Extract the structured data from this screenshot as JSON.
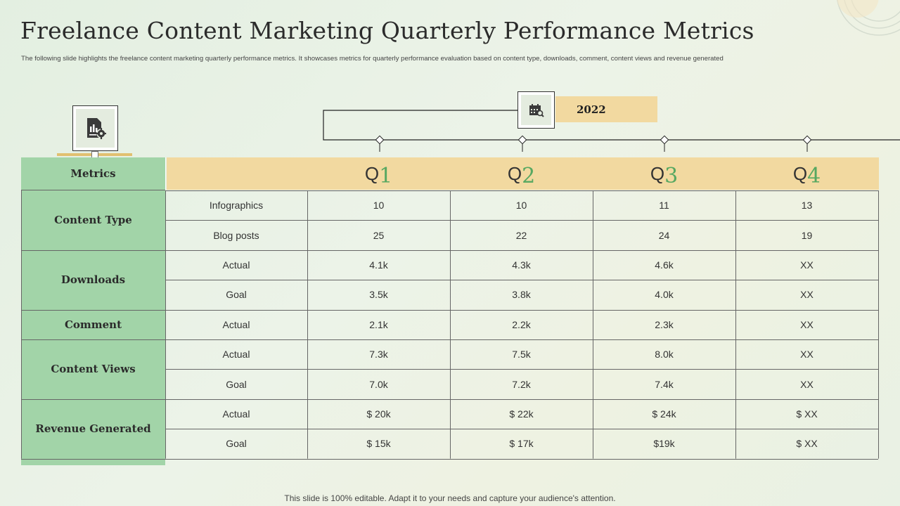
{
  "slide": {
    "title": "Freelance Content Marketing Quarterly Performance Metrics",
    "subtitle": "The following slide highlights the freelance content marketing quarterly performance metrics. It showcases metrics for quarterly performance evaluation based on content type, downloads, comment, content views and revenue generated",
    "footer": "This slide is 100% editable. Adapt it to your needs and capture your audience's attention."
  },
  "timeline": {
    "year": "2022"
  },
  "icons": {
    "report": "report-gear-icon",
    "calendar": "calendar-search-icon"
  },
  "colors": {
    "green": "#a2d4a8",
    "gold": "#f2d9a0",
    "accent": "#57a861"
  },
  "table": {
    "metrics_header": "Metrics",
    "quarters": [
      {
        "prefix": "Q",
        "num": "1"
      },
      {
        "prefix": "Q",
        "num": "2"
      },
      {
        "prefix": "Q",
        "num": "3"
      },
      {
        "prefix": "Q",
        "num": "4"
      }
    ],
    "groups": [
      {
        "name": "Content Type",
        "rows": [
          {
            "label": "Infographics",
            "values": [
              "10",
              "10",
              "11",
              "13"
            ]
          },
          {
            "label": "Blog posts",
            "values": [
              "25",
              "22",
              "24",
              "19"
            ]
          }
        ]
      },
      {
        "name": "Downloads",
        "rows": [
          {
            "label": "Actual",
            "values": [
              "4.1k",
              "4.3k",
              "4.6k",
              "XX"
            ]
          },
          {
            "label": "Goal",
            "values": [
              "3.5k",
              "3.8k",
              "4.0k",
              "XX"
            ]
          }
        ]
      },
      {
        "name": "Comment",
        "rows": [
          {
            "label": "Actual",
            "values": [
              "2.1k",
              "2.2k",
              "2.3k",
              "XX"
            ]
          }
        ]
      },
      {
        "name": "Content Views",
        "rows": [
          {
            "label": "Actual",
            "values": [
              "7.3k",
              "7.5k",
              "8.0k",
              "XX"
            ]
          },
          {
            "label": "Goal",
            "values": [
              "7.0k",
              "7.2k",
              "7.4k",
              "XX"
            ]
          }
        ]
      },
      {
        "name": "Revenue Generated",
        "rows": [
          {
            "label": "Actual",
            "values": [
              "$ 20k",
              "$ 22k",
              "$ 24k",
              "$ XX"
            ]
          },
          {
            "label": "Goal",
            "values": [
              "$ 15k",
              "$ 17k",
              "$19k",
              "$ XX"
            ]
          }
        ]
      }
    ]
  }
}
